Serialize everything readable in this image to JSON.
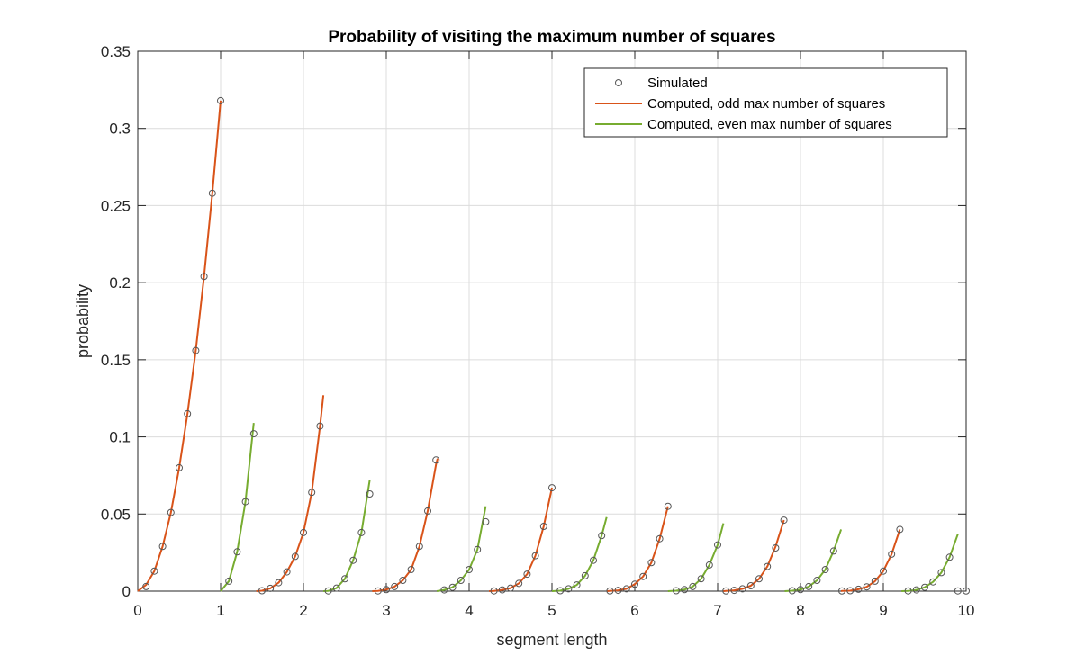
{
  "chart_data": {
    "type": "line",
    "title": "Probability of visiting the maximum number of squares",
    "xlabel": "segment length",
    "ylabel": "probability",
    "xlim": [
      0,
      10
    ],
    "ylim": [
      0,
      0.35
    ],
    "x_ticks": [
      "0",
      "1",
      "2",
      "3",
      "4",
      "5",
      "6",
      "7",
      "8",
      "9",
      "10"
    ],
    "y_ticks": [
      "0",
      "0.05",
      "0.1",
      "0.15",
      "0.2",
      "0.25",
      "0.3",
      "0.35"
    ],
    "grid": true,
    "legend_position": "top-right",
    "colors": {
      "odd": "#D95319",
      "even": "#77AC30",
      "simulated": "#555555"
    },
    "legend": [
      {
        "label": "Simulated",
        "marker": "circle"
      },
      {
        "label": "Computed, odd max number of squares",
        "color": "#D95319"
      },
      {
        "label": "Computed, even max number of squares",
        "color": "#77AC30"
      }
    ],
    "series": [
      {
        "name": "Computed, odd max number of squares",
        "kind": "line",
        "color": "#D95319",
        "segments": [
          {
            "x": [
              0,
              0.1,
              0.2,
              0.3,
              0.4,
              0.5,
              0.6,
              0.7,
              0.8,
              0.9,
              1.0
            ],
            "y": [
              0,
              0.004,
              0.013,
              0.029,
              0.051,
              0.08,
              0.115,
              0.156,
              0.204,
              0.258,
              0.318
            ]
          },
          {
            "x": [
              1.43,
              1.5,
              1.6,
              1.7,
              1.8,
              1.9,
              2.0,
              2.1,
              2.2,
              2.24
            ],
            "y": [
              0,
              0.0003,
              0.0018,
              0.0055,
              0.0125,
              0.0225,
              0.038,
              0.064,
              0.107,
              0.127
            ]
          },
          {
            "x": [
              2.83,
              2.9,
              3.0,
              3.1,
              3.2,
              3.3,
              3.4,
              3.5,
              3.6,
              3.62
            ],
            "y": [
              0,
              0.0002,
              0.001,
              0.003,
              0.007,
              0.014,
              0.029,
              0.052,
              0.082,
              0.086
            ]
          },
          {
            "x": [
              4.24,
              4.3,
              4.4,
              4.5,
              4.6,
              4.7,
              4.8,
              4.9,
              5.0
            ],
            "y": [
              0,
              0.0002,
              0.0008,
              0.002,
              0.005,
              0.011,
              0.023,
              0.042,
              0.067
            ]
          },
          {
            "x": [
              5.66,
              5.7,
              5.8,
              5.9,
              6.0,
              6.1,
              6.2,
              6.3,
              6.4
            ],
            "y": [
              0,
              0.0001,
              0.0005,
              0.0015,
              0.0045,
              0.0095,
              0.0185,
              0.034,
              0.055
            ]
          },
          {
            "x": [
              7.07,
              7.1,
              7.2,
              7.3,
              7.4,
              7.5,
              7.6,
              7.7,
              7.8
            ],
            "y": [
              0,
              0.0001,
              0.0005,
              0.0015,
              0.0035,
              0.008,
              0.016,
              0.029,
              0.046
            ]
          },
          {
            "x": [
              8.49,
              8.5,
              8.6,
              8.7,
              8.8,
              8.9,
              9.0,
              9.1,
              9.2
            ],
            "y": [
              0,
              0.0001,
              0.0003,
              0.0012,
              0.0028,
              0.0065,
              0.013,
              0.024,
              0.04
            ]
          }
        ]
      },
      {
        "name": "Computed, even max number of squares",
        "kind": "line",
        "color": "#77AC30",
        "segments": [
          {
            "x": [
              1.0,
              1.1,
              1.2,
              1.3,
              1.4
            ],
            "y": [
              0,
              0.0065,
              0.0255,
              0.058,
              0.109
            ]
          },
          {
            "x": [
              2.24,
              2.3,
              2.4,
              2.5,
              2.6,
              2.7,
              2.8
            ],
            "y": [
              0,
              0.0002,
              0.002,
              0.008,
              0.02,
              0.038,
              0.072
            ]
          },
          {
            "x": [
              3.61,
              3.7,
              3.8,
              3.9,
              4.0,
              4.1,
              4.2
            ],
            "y": [
              0,
              0.0008,
              0.0025,
              0.007,
              0.014,
              0.027,
              0.055
            ]
          },
          {
            "x": [
              5.0,
              5.1,
              5.2,
              5.3,
              5.4,
              5.5,
              5.6,
              5.66
            ],
            "y": [
              0,
              0.0003,
              0.0015,
              0.004,
              0.01,
              0.02,
              0.036,
              0.048
            ]
          },
          {
            "x": [
              6.4,
              6.5,
              6.6,
              6.7,
              6.8,
              6.9,
              7.0,
              7.07
            ],
            "y": [
              0,
              0.0003,
              0.001,
              0.003,
              0.008,
              0.017,
              0.03,
              0.044
            ]
          },
          {
            "x": [
              7.81,
              7.9,
              8.0,
              8.1,
              8.2,
              8.3,
              8.4,
              8.49
            ],
            "y": [
              0,
              0.0003,
              0.001,
              0.003,
              0.007,
              0.014,
              0.026,
              0.04
            ]
          },
          {
            "x": [
              9.22,
              9.3,
              9.4,
              9.5,
              9.6,
              9.7,
              9.8,
              9.9
            ],
            "y": [
              0,
              0.0002,
              0.0008,
              0.0025,
              0.006,
              0.012,
              0.022,
              0.037
            ]
          }
        ]
      },
      {
        "name": "Simulated",
        "kind": "scatter",
        "color": "#555555",
        "x": [
          0.1,
          0.2,
          0.3,
          0.4,
          0.5,
          0.6,
          0.7,
          0.8,
          0.9,
          1.0,
          1.1,
          1.2,
          1.3,
          1.4,
          1.5,
          1.6,
          1.7,
          1.8,
          1.9,
          2.0,
          2.1,
          2.2,
          2.3,
          2.4,
          2.5,
          2.6,
          2.7,
          2.8,
          2.9,
          3.0,
          3.1,
          3.2,
          3.3,
          3.4,
          3.5,
          3.6,
          3.7,
          3.8,
          3.9,
          4.0,
          4.1,
          4.2,
          4.3,
          4.4,
          4.5,
          4.6,
          4.7,
          4.8,
          4.9,
          5.0,
          5.1,
          5.2,
          5.3,
          5.4,
          5.5,
          5.6,
          5.7,
          5.8,
          5.9,
          6.0,
          6.1,
          6.2,
          6.3,
          6.4,
          6.5,
          6.6,
          6.7,
          6.8,
          6.9,
          7.0,
          7.1,
          7.2,
          7.3,
          7.4,
          7.5,
          7.6,
          7.7,
          7.8,
          7.9,
          8.0,
          8.1,
          8.2,
          8.3,
          8.4,
          8.5,
          8.6,
          8.7,
          8.8,
          8.9,
          9.0,
          9.1,
          9.2,
          9.3,
          9.4,
          9.5,
          9.6,
          9.7,
          9.8,
          9.9,
          10.0
        ],
        "y": [
          0.003,
          0.013,
          0.029,
          0.051,
          0.08,
          0.115,
          0.156,
          0.204,
          0.258,
          0.318,
          0.0065,
          0.0255,
          0.058,
          0.102,
          0.0003,
          0.0018,
          0.0055,
          0.0125,
          0.0225,
          0.038,
          0.064,
          0.107,
          0.0002,
          0.002,
          0.008,
          0.02,
          0.038,
          0.063,
          0.0002,
          0.001,
          0.003,
          0.007,
          0.014,
          0.029,
          0.052,
          0.085,
          0.0008,
          0.0025,
          0.007,
          0.014,
          0.027,
          0.045,
          0.0002,
          0.0008,
          0.002,
          0.005,
          0.011,
          0.023,
          0.042,
          0.067,
          0.0003,
          0.0015,
          0.004,
          0.01,
          0.02,
          0.036,
          0.0001,
          0.0005,
          0.0015,
          0.0045,
          0.0095,
          0.0185,
          0.034,
          0.055,
          0.0003,
          0.001,
          0.003,
          0.008,
          0.017,
          0.03,
          0.0001,
          0.0005,
          0.0015,
          0.0035,
          0.008,
          0.016,
          0.028,
          0.046,
          0.0003,
          0.001,
          0.003,
          0.007,
          0.014,
          0.026,
          0.0001,
          0.0003,
          0.0012,
          0.0028,
          0.0065,
          0.013,
          0.024,
          0.04,
          0.0002,
          0.0008,
          0.0025,
          0.006,
          0.012,
          0.022,
          0.0002,
          0.0001
        ]
      }
    ]
  }
}
